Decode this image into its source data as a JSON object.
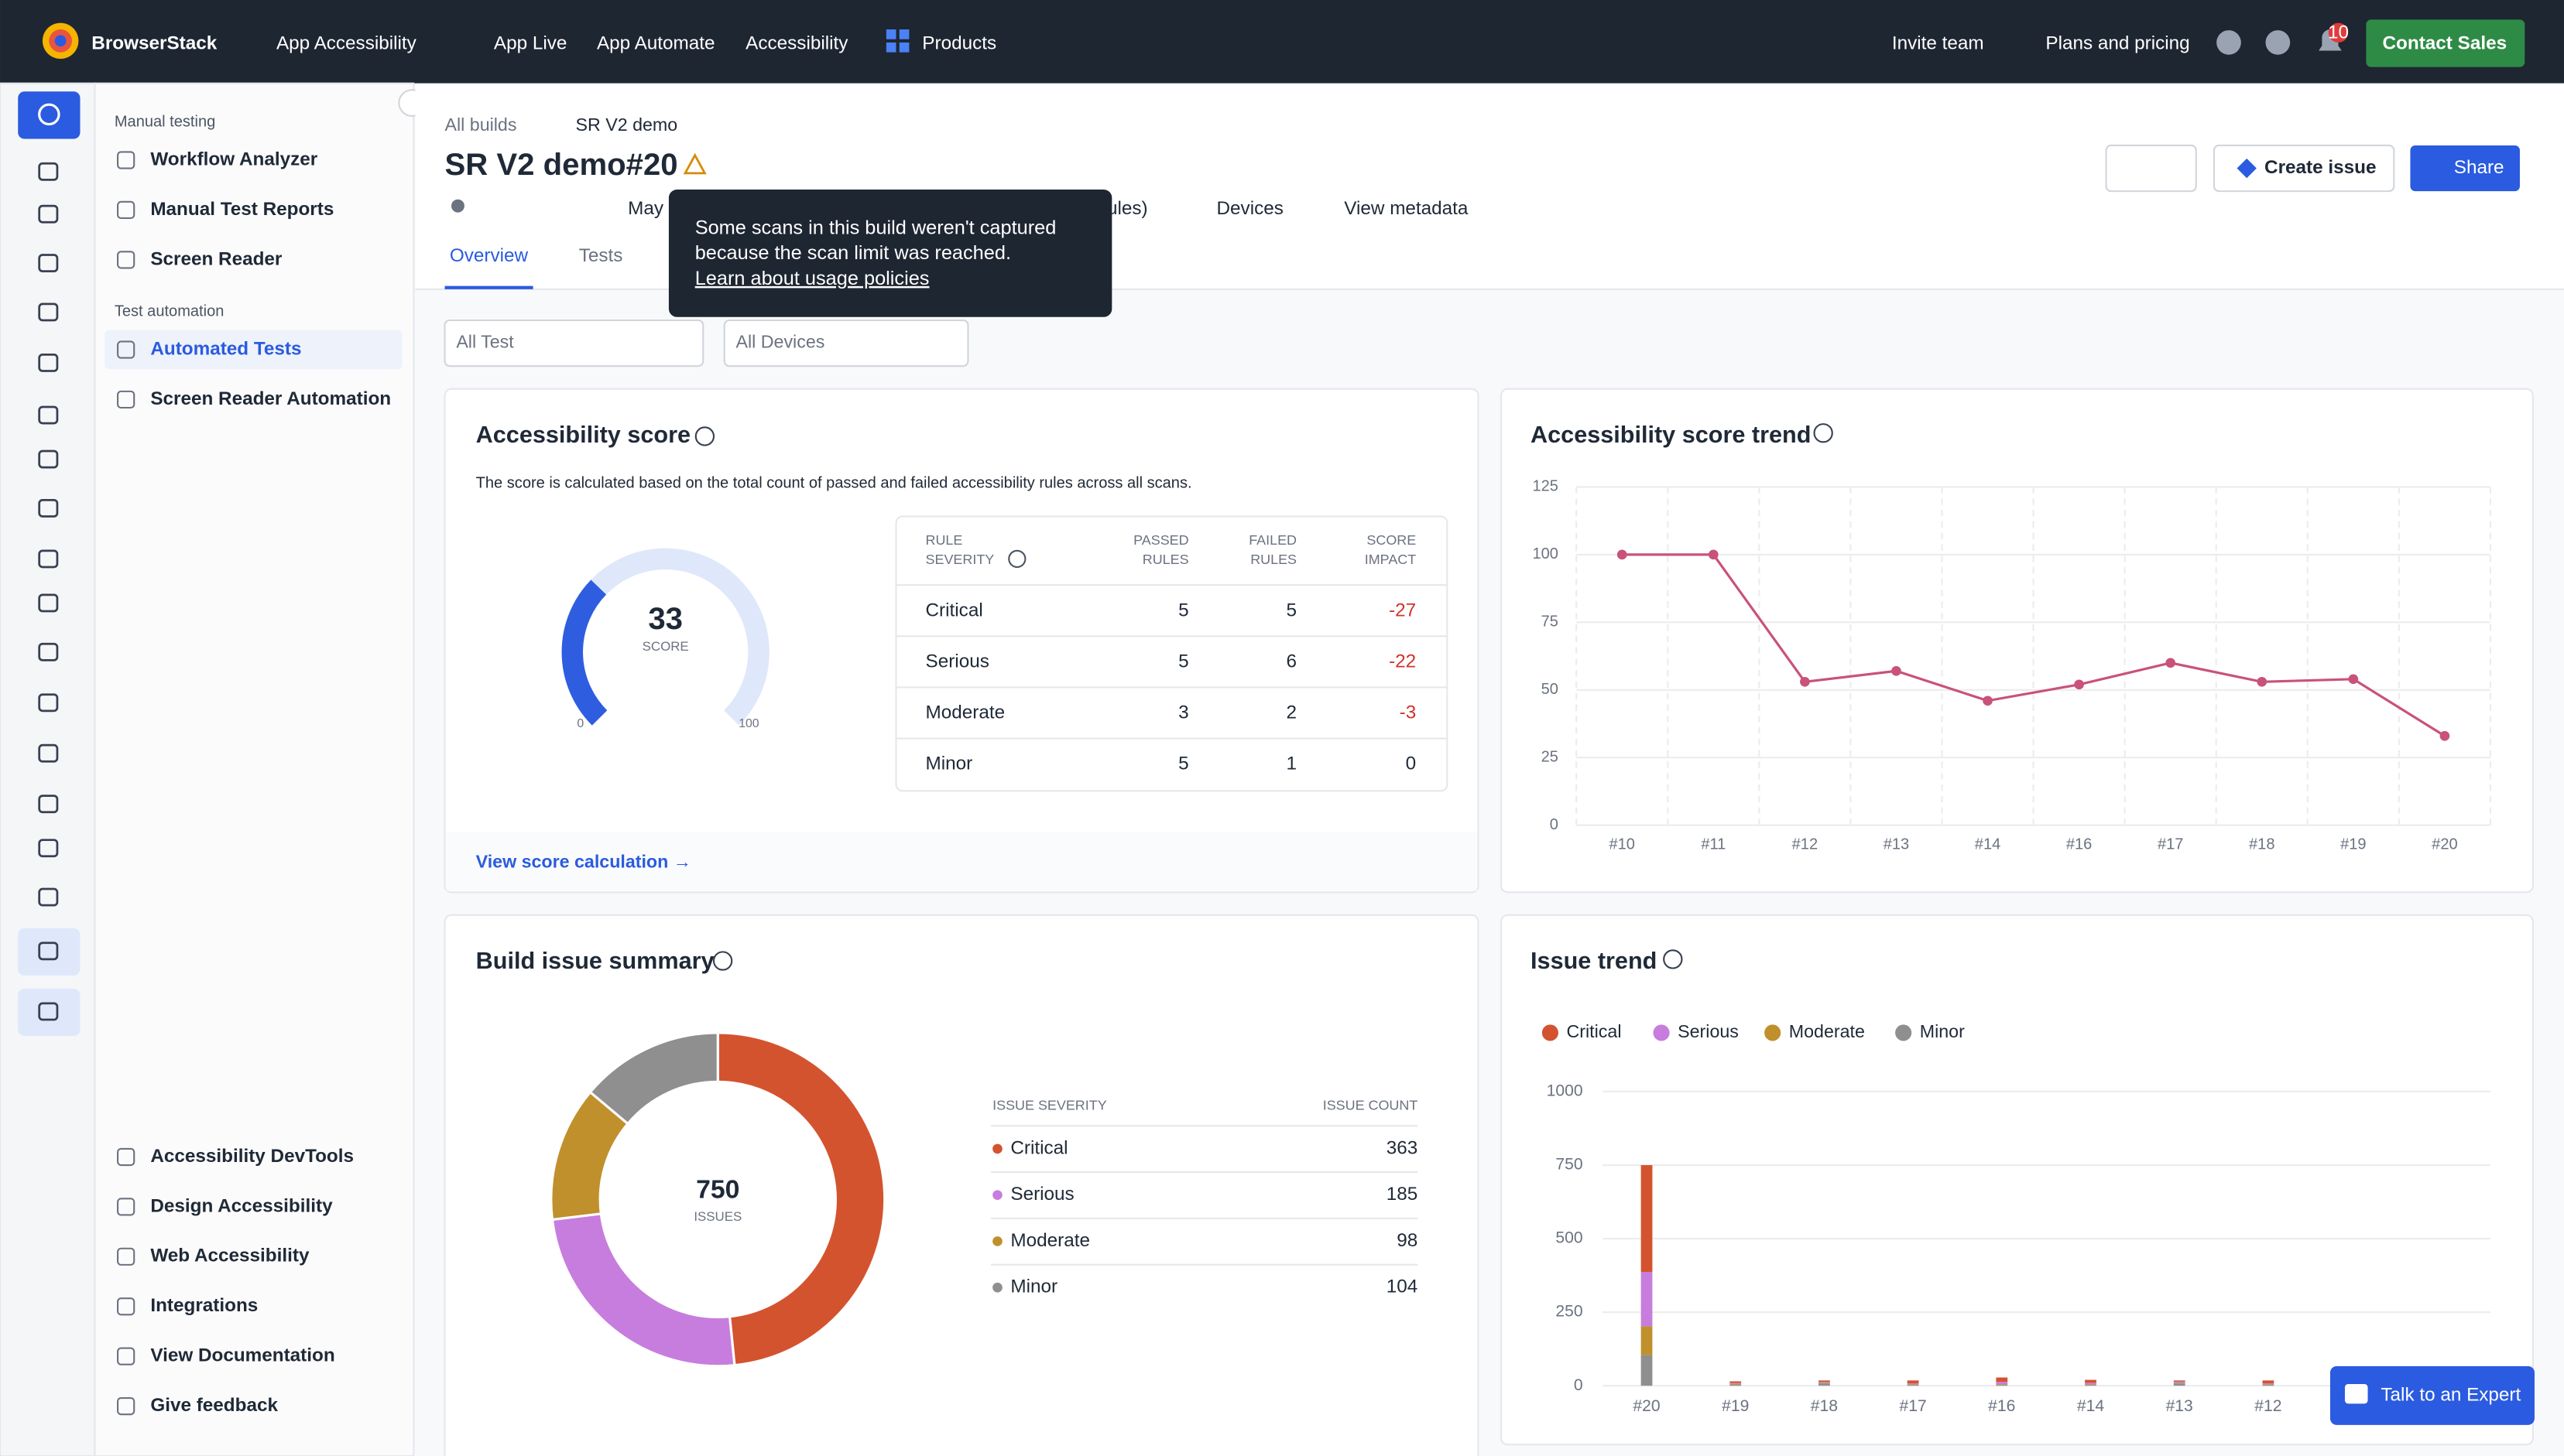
{
  "top_nav": {
    "brand": "BrowserStack",
    "product": "App Accessibility",
    "links": [
      "App Live",
      "App Automate",
      "Accessibility",
      "Products"
    ],
    "actions": [
      "Invite team",
      "Plans and pricing"
    ],
    "notification_count": "10",
    "cta": "Contact Sales"
  },
  "sidebar": {
    "sections": [
      {
        "heading": "Manual testing",
        "items": [
          "Workflow Analyzer",
          "Manual Test Reports",
          "Screen Reader"
        ]
      },
      {
        "heading": "Test automation",
        "items": [
          "Automated Tests",
          "Screen Reader Automation"
        ]
      }
    ],
    "footer_items": [
      "Accessibility DevTools",
      "Design Accessibility",
      "Web Accessibility",
      "Integrations",
      "View Documentation",
      "Give feedback"
    ]
  },
  "header": {
    "breadcrumbs": [
      "All builds",
      "SR V2 demo"
    ],
    "title": "SR V2 demo#20",
    "meta": [
      "May",
      "ules)",
      "Devices",
      "View metadata"
    ],
    "tabs": [
      "Overview",
      "Tests"
    ],
    "buttons": [
      "Create issue",
      "Share"
    ]
  },
  "tooltip": {
    "lines": [
      "Some scans in this build weren't captured",
      "because the scan limit was reached."
    ],
    "link": "Learn about usage policies"
  },
  "filters": [
    "All Test",
    "All Devices"
  ],
  "score_card": {
    "title": "Accessibility score",
    "description": "The score is calculated based on the total count of passed and failed accessibility rules across all scans.",
    "score": 33,
    "score_label": "SCORE",
    "gauge_min": 0,
    "gauge_max": 100,
    "columns": [
      [
        "RULE",
        "SEVERITY"
      ],
      [
        "PASSED",
        "RULES"
      ],
      [
        "FAILED",
        "RULES"
      ],
      [
        "SCORE",
        "IMPACT"
      ]
    ],
    "rows": [
      [
        "Critical",
        5,
        5,
        -27
      ],
      [
        "Serious",
        5,
        6,
        -22
      ],
      [
        "Moderate",
        3,
        2,
        -3
      ],
      [
        "Minor",
        5,
        1,
        0
      ]
    ],
    "link": "View score calculation →"
  },
  "score_trend": {
    "type": "line",
    "title": "Accessibility score trend",
    "categories": [
      "#10",
      "#11",
      "#12",
      "#13",
      "#14",
      "#16",
      "#17",
      "#18",
      "#19",
      "#20"
    ],
    "values": [
      100,
      100,
      53,
      57,
      46,
      52,
      60,
      53,
      54,
      33
    ],
    "ylim": [
      0,
      125
    ],
    "yticks": [
      0,
      25,
      50,
      75,
      100,
      125
    ],
    "color": "#c9527a",
    "grid": true
  },
  "summary": {
    "type": "donut",
    "title": "Build issue summary",
    "total": 750,
    "total_label": "ISSUES",
    "columns": [
      "ISSUE SEVERITY",
      "ISSUE COUNT"
    ],
    "rows": [
      {
        "name": "Critical",
        "color": "#d4532f",
        "value": 363
      },
      {
        "name": "Serious",
        "color": "#c77dde",
        "value": 185
      },
      {
        "name": "Moderate",
        "color": "#c0902d",
        "value": 98
      },
      {
        "name": "Minor",
        "color": "#8f8f8f",
        "value": 104
      }
    ]
  },
  "issue_trend": {
    "type": "stacked-bar",
    "title": "Issue trend",
    "categories": [
      "#20",
      "#19",
      "#18",
      "#17",
      "#16",
      "#14",
      "#13",
      "#12"
    ],
    "series": [
      {
        "name": "Critical",
        "color": "#d4532f",
        "values": [
          363,
          6,
          5,
          10,
          15,
          10,
          4,
          10
        ]
      },
      {
        "name": "Serious",
        "color": "#c77dde",
        "values": [
          185,
          3,
          3,
          3,
          8,
          5,
          4,
          3
        ]
      },
      {
        "name": "Moderate",
        "color": "#c0902d",
        "values": [
          98,
          2,
          2,
          2,
          2,
          2,
          2,
          2
        ]
      },
      {
        "name": "Minor",
        "color": "#8f8f8f",
        "values": [
          104,
          4,
          8,
          3,
          3,
          3,
          8,
          3
        ]
      }
    ],
    "ylim": [
      0,
      1000
    ],
    "yticks": [
      0,
      250,
      500,
      750,
      1000
    ],
    "grid": true
  },
  "chat_button": "Talk to an Expert"
}
